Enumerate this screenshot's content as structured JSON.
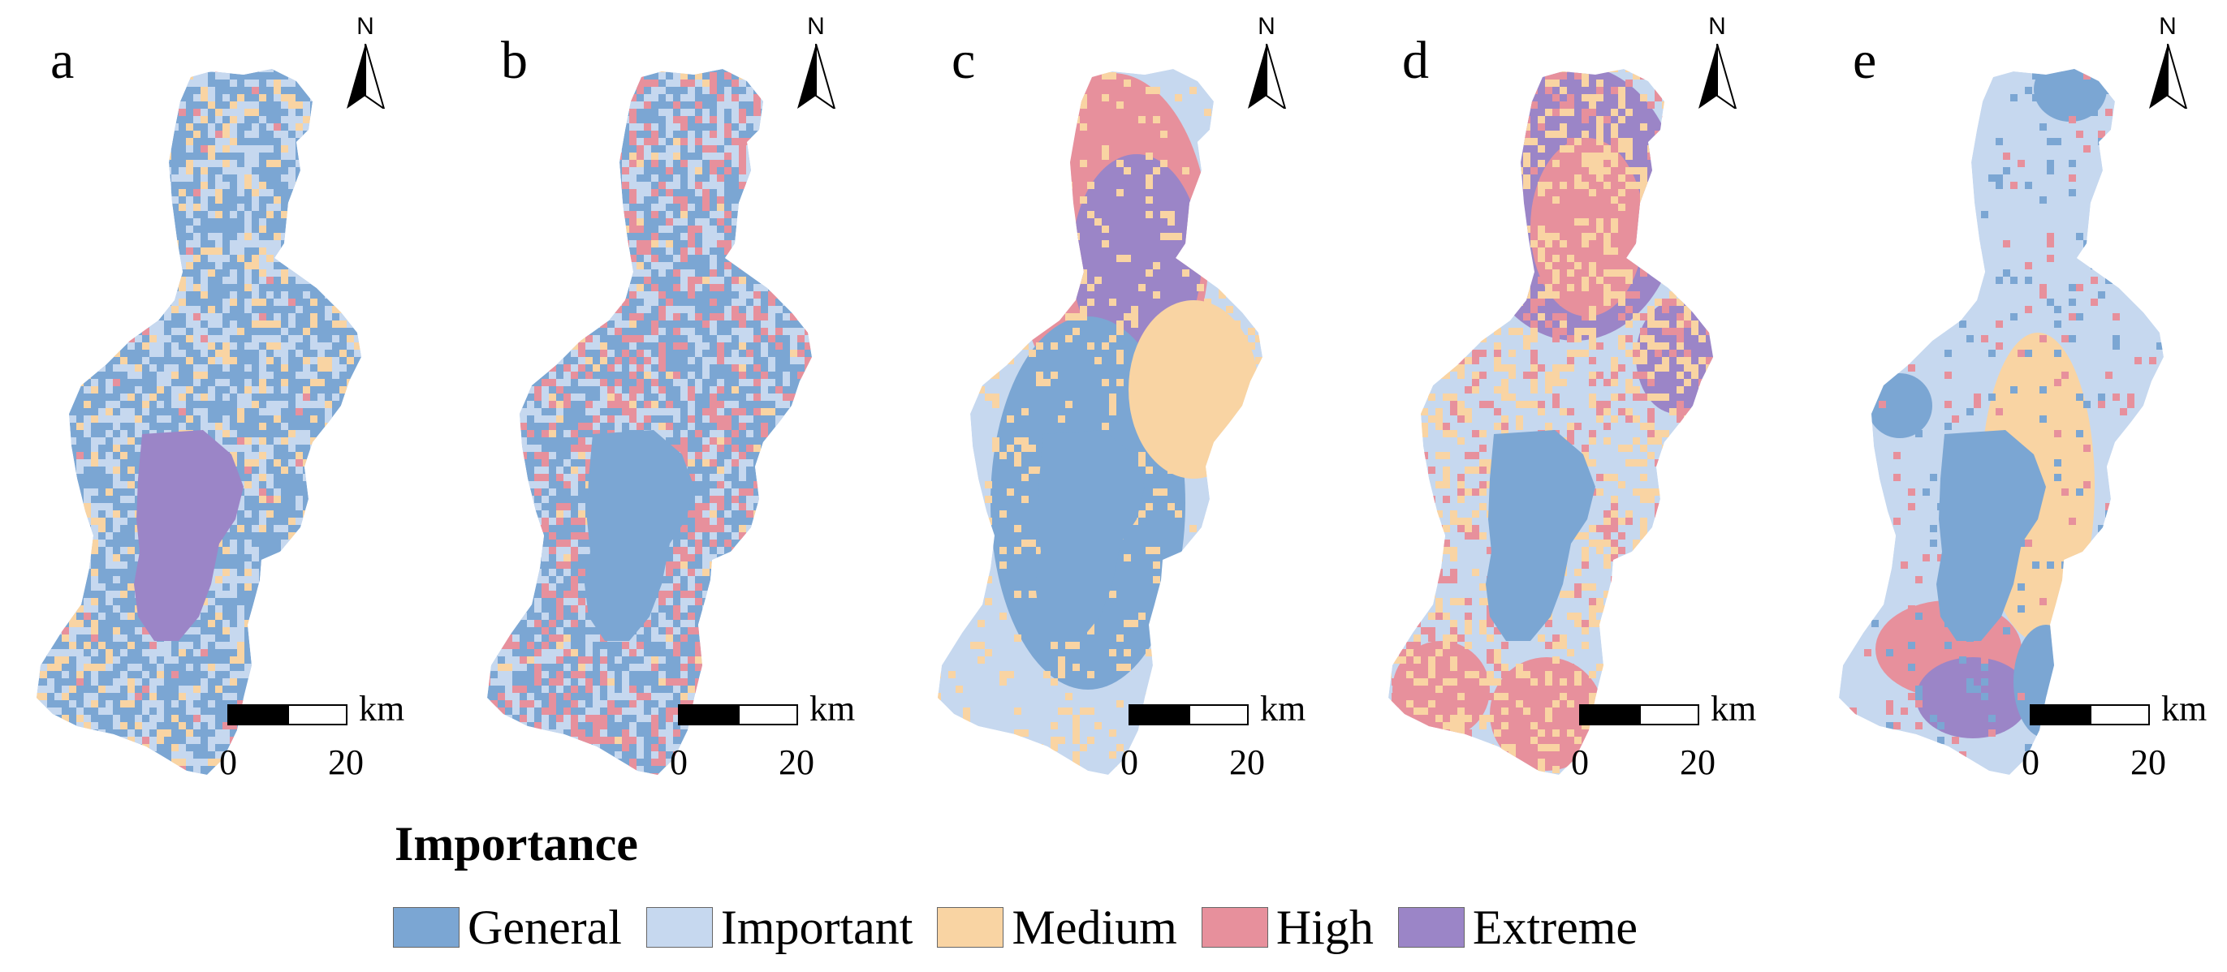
{
  "panels": [
    {
      "letter": "a"
    },
    {
      "letter": "b"
    },
    {
      "letter": "c"
    },
    {
      "letter": "d"
    },
    {
      "letter": "e"
    }
  ],
  "north_arrow": {
    "label": "N"
  },
  "scale_bar": {
    "unit": "km",
    "min_label": "0",
    "max_label": "20"
  },
  "legend": {
    "title": "Importance",
    "items": [
      {
        "label": "General",
        "color": "#7ba6d3"
      },
      {
        "label": "Important",
        "color": "#c6d8ef"
      },
      {
        "label": "Medium",
        "color": "#f9d4a3"
      },
      {
        "label": "High",
        "color": "#e7909c"
      },
      {
        "label": "Extreme",
        "color": "#9b85c7"
      }
    ]
  }
}
